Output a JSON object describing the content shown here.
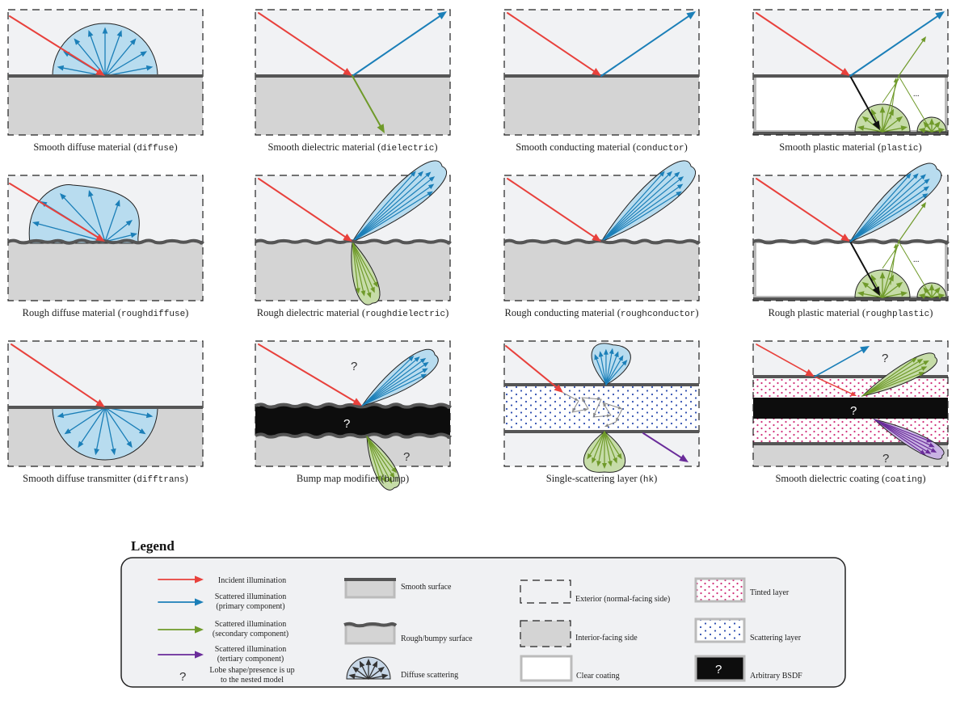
{
  "panels": [
    {
      "id": "diffuse",
      "title": "Smooth diffuse material (",
      "code": "diffuse",
      "close": ")"
    },
    {
      "id": "dielectric",
      "title": "Smooth dielectric material (",
      "code": "dielectric",
      "close": ")"
    },
    {
      "id": "conductor",
      "title": "Smooth conducting material (",
      "code": "conductor",
      "close": ")"
    },
    {
      "id": "plastic",
      "title": "Smooth plastic material (",
      "code": "plastic",
      "close": ")"
    },
    {
      "id": "roughdiffuse",
      "title": "Rough diffuse material (",
      "code": "roughdiffuse",
      "close": ")"
    },
    {
      "id": "roughdielectric",
      "title": "Rough dielectric material (",
      "code": "roughdielectric",
      "close": ")"
    },
    {
      "id": "roughconductor",
      "title": "Rough conducting material (",
      "code": "roughconductor",
      "close": ")"
    },
    {
      "id": "roughplastic",
      "title": "Rough plastic material (",
      "code": "roughplastic",
      "close": ")"
    },
    {
      "id": "difftrans",
      "title": "Smooth diffuse transmitter (",
      "code": "difftrans",
      "close": ")"
    },
    {
      "id": "bump",
      "title": "Bump map modifier (",
      "code": "bump",
      "close": ")"
    },
    {
      "id": "hk",
      "title": "Single-scattering layer (",
      "code": "hk",
      "close": ")"
    },
    {
      "id": "coating",
      "title": "Smooth dielectric coating (",
      "code": "coating",
      "close": ")"
    }
  ],
  "marks": {
    "question": "?",
    "ellipsis": "..."
  },
  "legend": {
    "title": "Legend",
    "incident": "Incident illumination",
    "primary_1": "Scattered illumination",
    "primary_2": "(primary component)",
    "secondary_1": "Scattered illumination",
    "secondary_2": "(secondary component)",
    "tertiary_1": "Scattered illumination",
    "tertiary_2": "(tertiary component)",
    "lobe_1": "Lobe shape/presence is up",
    "lobe_2": "to the nested model",
    "smooth_surface": "Smooth surface",
    "rough_surface": "Rough/bumpy surface",
    "diffuse_scattering": "Diffuse scattering",
    "exterior": "Exterior (normal-facing side)",
    "interior": "Interior-facing side",
    "clear_coating": "Clear coating",
    "tinted_layer": "Tinted layer",
    "scattering_layer": "Scattering layer",
    "arbitrary_bsdf": "Arbitrary BSDF"
  },
  "colors": {
    "incident": "#e8413c",
    "primary": "#1b7fb8",
    "secondary": "#6f9a2a",
    "tertiary": "#6a2c9a",
    "lobe_blue": "#b8dcef",
    "lobe_green": "#c6dca8",
    "lobe_purple": "#c9b3e3",
    "exterior_bg": "#f1f2f4",
    "interior_bg": "#d4d4d4",
    "surface": "#555555",
    "legend_bg": "#f0f1f3"
  }
}
